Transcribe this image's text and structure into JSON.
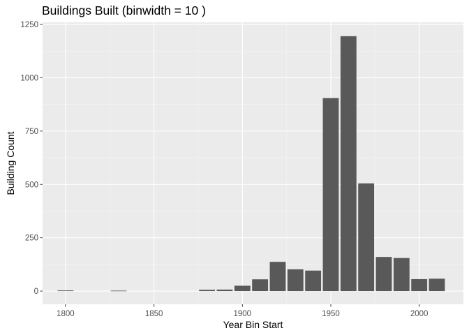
{
  "chart_data": {
    "type": "bar",
    "title": "Buildings Built (binwidth = 10 )",
    "xlabel": "Year Bin Start",
    "ylabel": "Building Count",
    "xlim": [
      1787,
      2025
    ],
    "ylim": [
      -62,
      1260
    ],
    "x_ticks": [
      1800,
      1850,
      1900,
      1950,
      2000
    ],
    "y_ticks": [
      0,
      250,
      500,
      750,
      1000,
      1250
    ],
    "bin_width": 10,
    "grid": true,
    "x": [
      1800,
      1830,
      1880,
      1890,
      1900,
      1910,
      1920,
      1930,
      1940,
      1950,
      1960,
      1970,
      1980,
      1990,
      2000,
      2010
    ],
    "values": [
      3,
      2,
      6,
      7,
      25,
      55,
      137,
      102,
      96,
      905,
      1195,
      505,
      160,
      155,
      56,
      58
    ],
    "colors": {
      "panel": "#ebebeb",
      "grid_major": "#ffffff",
      "grid_minor": "#f5f5f5",
      "bar": "#595959",
      "tick": "#333333"
    }
  }
}
